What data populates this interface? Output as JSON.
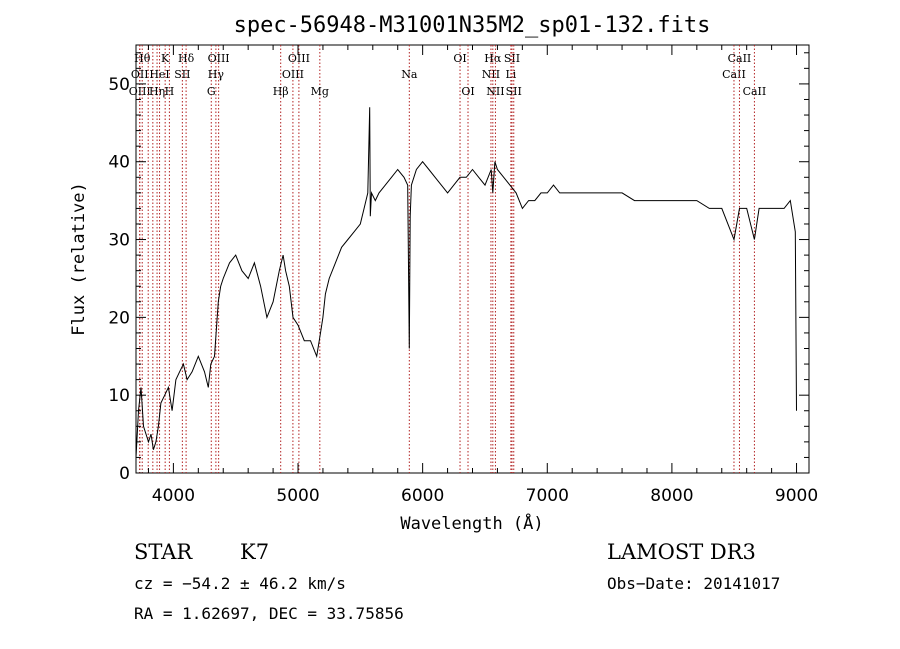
{
  "chart_data": {
    "type": "line",
    "title": "spec-56948-M31001N35M2_sp01-132.fits",
    "xlabel": "Wavelength (Å)",
    "ylabel": "Flux (relative)",
    "xlim": [
      3700,
      9100
    ],
    "ylim": [
      0,
      55
    ],
    "xticks": [
      4000,
      5000,
      6000,
      7000,
      8000,
      9000
    ],
    "yticks": [
      0,
      10,
      20,
      30,
      40,
      50
    ],
    "grid": false,
    "series": [
      {
        "x": [
          3700,
          3720,
          3740,
          3760,
          3780,
          3800,
          3820,
          3840,
          3860,
          3880,
          3900,
          3930,
          3960,
          3990,
          4020,
          4050,
          4080,
          4110,
          4150,
          4200,
          4250,
          4280,
          4300,
          4330,
          4360,
          4380,
          4400,
          4450,
          4500,
          4550,
          4600,
          4650,
          4700,
          4750,
          4800,
          4850,
          4880,
          4900,
          4930,
          4960,
          5000,
          5050,
          5100,
          5150,
          5180,
          5200,
          5220,
          5250,
          5300,
          5350,
          5400,
          5450,
          5500,
          5530,
          5560,
          5575,
          5580,
          5590,
          5620,
          5650,
          5700,
          5750,
          5800,
          5850,
          5880,
          5893,
          5900,
          5910,
          5950,
          6000,
          6050,
          6100,
          6150,
          6200,
          6250,
          6300,
          6350,
          6400,
          6450,
          6500,
          6550,
          6563,
          6580,
          6600,
          6650,
          6700,
          6750,
          6800,
          6850,
          6900,
          6950,
          7000,
          7050,
          7100,
          7150,
          7200,
          7300,
          7400,
          7500,
          7600,
          7700,
          7800,
          7900,
          8000,
          8100,
          8200,
          8300,
          8400,
          8498,
          8542,
          8600,
          8662,
          8700,
          8800,
          8900,
          8950,
          8970,
          8990,
          9000
        ],
        "y": [
          2,
          8,
          11,
          6,
          5,
          4,
          5,
          3,
          4,
          6,
          9,
          10,
          11,
          8,
          12,
          13,
          14,
          12,
          13,
          15,
          13,
          11,
          14,
          15,
          22,
          24,
          25,
          27,
          28,
          26,
          25,
          27,
          24,
          20,
          22,
          26,
          28,
          26,
          24,
          20,
          19,
          17,
          17,
          15,
          18,
          20,
          23,
          25,
          27,
          29,
          30,
          31,
          32,
          34,
          36,
          47,
          33,
          36,
          35,
          36,
          37,
          38,
          39,
          38,
          37,
          16,
          33,
          37,
          39,
          40,
          39,
          38,
          37,
          36,
          37,
          38,
          38,
          39,
          38,
          37,
          39,
          36,
          40,
          39,
          38,
          37,
          36,
          34,
          35,
          35,
          36,
          36,
          37,
          36,
          36,
          36,
          36,
          36,
          36,
          36,
          35,
          35,
          35,
          35,
          35,
          35,
          34,
          34,
          30,
          34,
          34,
          30,
          34,
          34,
          34,
          35,
          33,
          31,
          8
        ]
      }
    ]
  },
  "lines": [
    {
      "w": 3750,
      "label": "Hθ",
      "row": 1,
      "align": "middle"
    },
    {
      "w": 3730,
      "label": "OII",
      "row": 2,
      "align": "middle"
    },
    {
      "w": 3730,
      "label": "OIII",
      "row": 3,
      "align": "middle"
    },
    {
      "w": 3798,
      "label": "",
      "row": 0,
      "align": "middle"
    },
    {
      "w": 3835,
      "label": "",
      "row": 0,
      "align": "middle"
    },
    {
      "w": 3869,
      "label": "Hη",
      "row": 3,
      "align": "middle"
    },
    {
      "w": 3889,
      "label": "HeI",
      "row": 2,
      "align": "middle"
    },
    {
      "w": 3934,
      "label": "K",
      "row": 1,
      "align": "middle"
    },
    {
      "w": 3968,
      "label": "H",
      "row": 3,
      "align": "middle"
    },
    {
      "w": 4072,
      "label": "SII",
      "row": 2,
      "align": "middle"
    },
    {
      "w": 4102,
      "label": "Hδ",
      "row": 1,
      "align": "middle"
    },
    {
      "w": 4304,
      "label": "G",
      "row": 3,
      "align": "middle"
    },
    {
      "w": 4341,
      "label": "Hγ",
      "row": 2,
      "align": "middle"
    },
    {
      "w": 4363,
      "label": "OIII",
      "row": 1,
      "align": "middle"
    },
    {
      "w": 4861,
      "label": "Hβ",
      "row": 3,
      "align": "middle"
    },
    {
      "w": 4959,
      "label": "OIII",
      "row": 2,
      "align": "middle"
    },
    {
      "w": 5007,
      "label": "OIII",
      "row": 1,
      "align": "middle"
    },
    {
      "w": 5175,
      "label": "Mg",
      "row": 3,
      "align": "middle"
    },
    {
      "w": 5893,
      "label": "Na",
      "row": 2,
      "align": "middle"
    },
    {
      "w": 6300,
      "label": "OI",
      "row": 1,
      "align": "middle"
    },
    {
      "w": 6364,
      "label": "OI",
      "row": 3,
      "align": "middle"
    },
    {
      "w": 6548,
      "label": "NII",
      "row": 2,
      "align": "middle"
    },
    {
      "w": 6563,
      "label": "Hα",
      "row": 1,
      "align": "middle"
    },
    {
      "w": 6584,
      "label": "NII",
      "row": 3,
      "align": "middle"
    },
    {
      "w": 6708,
      "label": "Li",
      "row": 2,
      "align": "middle"
    },
    {
      "w": 6717,
      "label": "SII",
      "row": 1,
      "align": "middle"
    },
    {
      "w": 6731,
      "label": "SII",
      "row": 3,
      "align": "middle"
    },
    {
      "w": 8498,
      "label": "CaII",
      "row": 2,
      "align": "middle"
    },
    {
      "w": 8542,
      "label": "CaII",
      "row": 1,
      "align": "middle"
    },
    {
      "w": 8662,
      "label": "CaII",
      "row": 3,
      "align": "middle"
    }
  ],
  "info": {
    "class": "STAR",
    "subclass": "K7",
    "survey": "LAMOST DR3",
    "cz": "cz = −54.2 ± 46.2 km/s",
    "obs_date": "Obs−Date: 20141017",
    "radec": "RA =   1.62697, DEC =  33.75856"
  }
}
